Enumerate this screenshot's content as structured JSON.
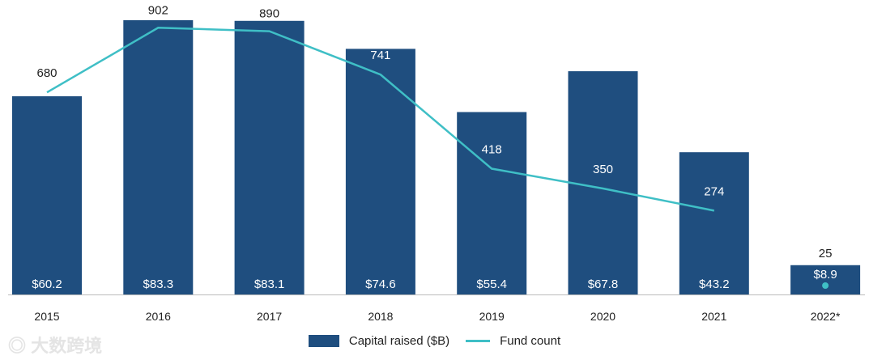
{
  "chart_data": {
    "type": "bar",
    "categories": [
      "2015",
      "2016",
      "2017",
      "2018",
      "2019",
      "2020",
      "2021",
      "2022*"
    ],
    "series": [
      {
        "name": "Capital raised ($B)",
        "type": "bar",
        "values": [
          60.2,
          83.3,
          83.1,
          74.6,
          55.4,
          67.8,
          43.2,
          8.9
        ],
        "labels": [
          "$60.2",
          "$83.3",
          "$83.1",
          "$74.6",
          "$55.4",
          "$67.8",
          "$43.2",
          "$8.9"
        ],
        "color": "#1f4e7f"
      },
      {
        "name": "Fund count",
        "type": "line",
        "values": [
          680,
          902,
          890,
          741,
          418,
          350,
          274,
          25
        ],
        "color": "#3fbfc6"
      }
    ],
    "title": "",
    "xlabel": "",
    "ylabel": "",
    "legend": "bottom"
  },
  "watermark": "大数跨境"
}
